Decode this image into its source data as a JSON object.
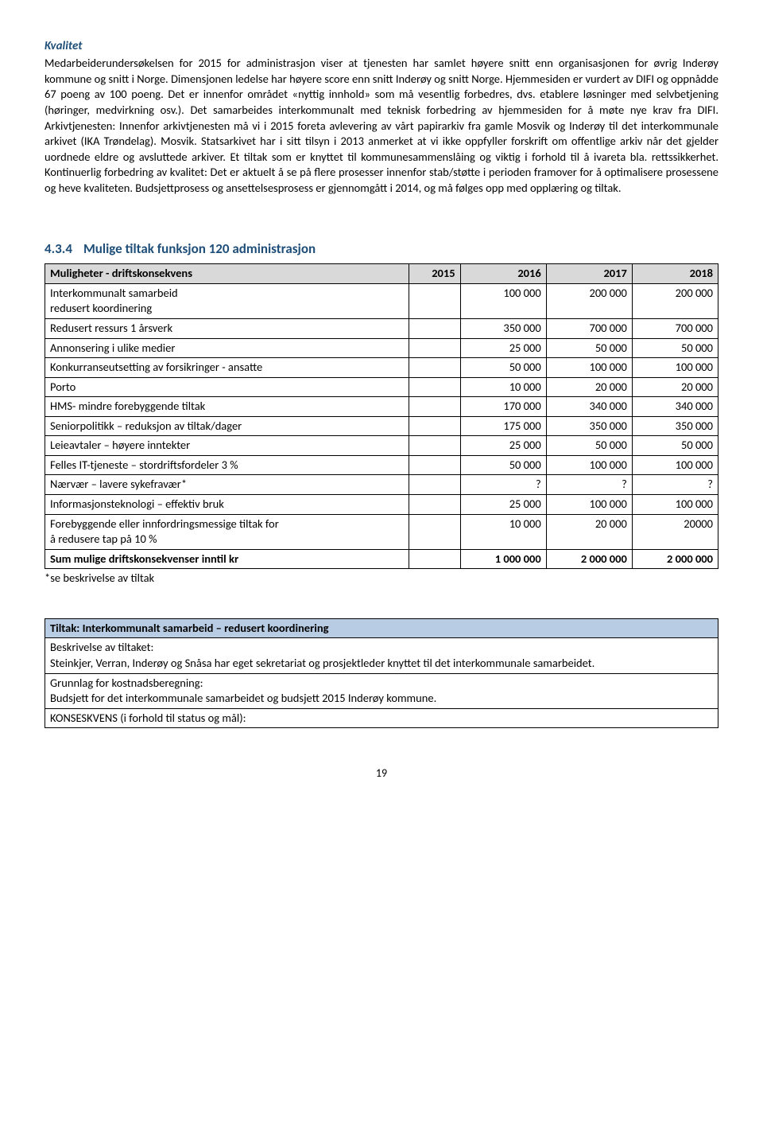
{
  "kvalitet": {
    "heading": "Kvalitet",
    "paragraph": "Medarbeiderundersøkelsen for 2015 for administrasjon viser at tjenesten har samlet høyere snitt enn organisasjonen for øvrig Inderøy kommune og snitt i Norge. Dimensjonen ledelse har høyere score enn snitt Inderøy og snitt Norge.  Hjemmesiden er vurdert av DIFI og oppnådde 67 poeng av 100 poeng. Det er innenfor området «nyttig innhold» som må vesentlig forbedres, dvs. etablere løsninger med selvbetjening (høringer, medvirkning osv.). Det samarbeides interkommunalt med teknisk forbedring av hjemmesiden for å møte nye krav fra DIFI. Arkivtjenesten: Innenfor arkivtjenesten må vi i 2015 foreta avlevering av vårt papirarkiv fra gamle Mosvik og Inderøy til det interkommunale arkivet (IKA Trøndelag). Mosvik. Statsarkivet har i sitt tilsyn i 2013 anmerket at vi ikke oppfyller forskrift om offentlige arkiv når det gjelder uordnede eldre og avsluttede arkiver.  Et tiltak som er knyttet til kommunesammenslåing og viktig i forhold til å ivareta bla. rettssikkerhet. Kontinuerlig forbedring av kvalitet: Det er aktuelt å se på flere prosesser innenfor stab/støtte i perioden framover for å optimalisere prosessene og heve kvaliteten. Budsjettprosess og ansettelsesprosess er gjennomgått i 2014, og må følges opp med opplæring og tiltak."
  },
  "section": {
    "number": "4.3.4",
    "title": "Mulige tiltak funksjon 120 administrasjon"
  },
  "table1": {
    "headers": [
      "Muligheter - driftskonsekvens",
      "2015",
      "2016",
      "2017",
      "2018"
    ],
    "rows": [
      {
        "label_line1": "Interkommunalt samarbeid",
        "label_line2": "redusert koordinering",
        "v2016": "100 000",
        "v2017": "200 000",
        "v2018": "200 000"
      },
      {
        "label": "Redusert ressurs 1 årsverk",
        "v2016": "350 000",
        "v2017": "700 000",
        "v2018": "700 000"
      },
      {
        "label": "Annonsering i ulike medier",
        "v2016": "25 000",
        "v2017": "50 000",
        "v2018": "50 000"
      },
      {
        "label": "Konkurranseutsetting av forsikringer - ansatte",
        "v2016": "50 000",
        "v2017": "100 000",
        "v2018": "100 000"
      },
      {
        "label": "Porto",
        "v2016": "10 000",
        "v2017": "20 000",
        "v2018": "20 000"
      },
      {
        "label": "HMS- mindre forebyggende tiltak",
        "v2016": "170 000",
        "v2017": "340 000",
        "v2018": "340 000"
      },
      {
        "label": "Seniorpolitikk – reduksjon av tiltak/dager",
        "v2016": "175 000",
        "v2017": "350 000",
        "v2018": "350 000"
      },
      {
        "label": "Leieavtaler – høyere inntekter",
        "v2016": "25 000",
        "v2017": "50 000",
        "v2018": "50 000"
      },
      {
        "label": "Felles IT-tjeneste – stordriftsfordeler 3 %",
        "v2016": "50 000",
        "v2017": "100 000",
        "v2018": "100 000"
      },
      {
        "label": "Nærvær – lavere sykefravær*",
        "v2016": "?",
        "v2017": "?",
        "v2018": "?"
      },
      {
        "label": "Informasjonsteknologi – effektiv bruk",
        "v2016": "25 000",
        "v2017": "100 000",
        "v2018": "100 000"
      },
      {
        "label_line1": "Forebyggende eller innfordringsmessige tiltak for",
        "label_line2": "å redusere tap på 10 %",
        "v2016": "10 000",
        "v2017": "20 000",
        "v2018": "20000"
      }
    ],
    "sum": {
      "label": "Sum mulige driftskonsekvenser inntil kr",
      "v2016": "1 000 000",
      "v2017": "2 000 000",
      "v2018": "2 000 000"
    },
    "note": "*se beskrivelse av tiltak"
  },
  "table2": {
    "header": "Tiltak: Interkommunalt samarbeid – redusert koordinering",
    "r1l": "Beskrivelse av tiltaket:",
    "r1t": "Steinkjer, Verran, Inderøy og Snåsa har eget sekretariat og prosjektleder knyttet til det interkommunale samarbeidet.",
    "r2l": "Grunnlag for kostnadsberegning:",
    "r2t": "Budsjett for det interkommunale samarbeidet og budsjett 2015 Inderøy kommune.",
    "r3": "KONSESKVENS (i forhold til status og mål):"
  },
  "page_number": "19",
  "colors": {
    "heading": "#1f4e79",
    "table_header_bg": "#d9d9d9",
    "tiltak_header_bg": "#b8cce4",
    "border": "#000000",
    "text": "#000000",
    "background": "#ffffff"
  }
}
